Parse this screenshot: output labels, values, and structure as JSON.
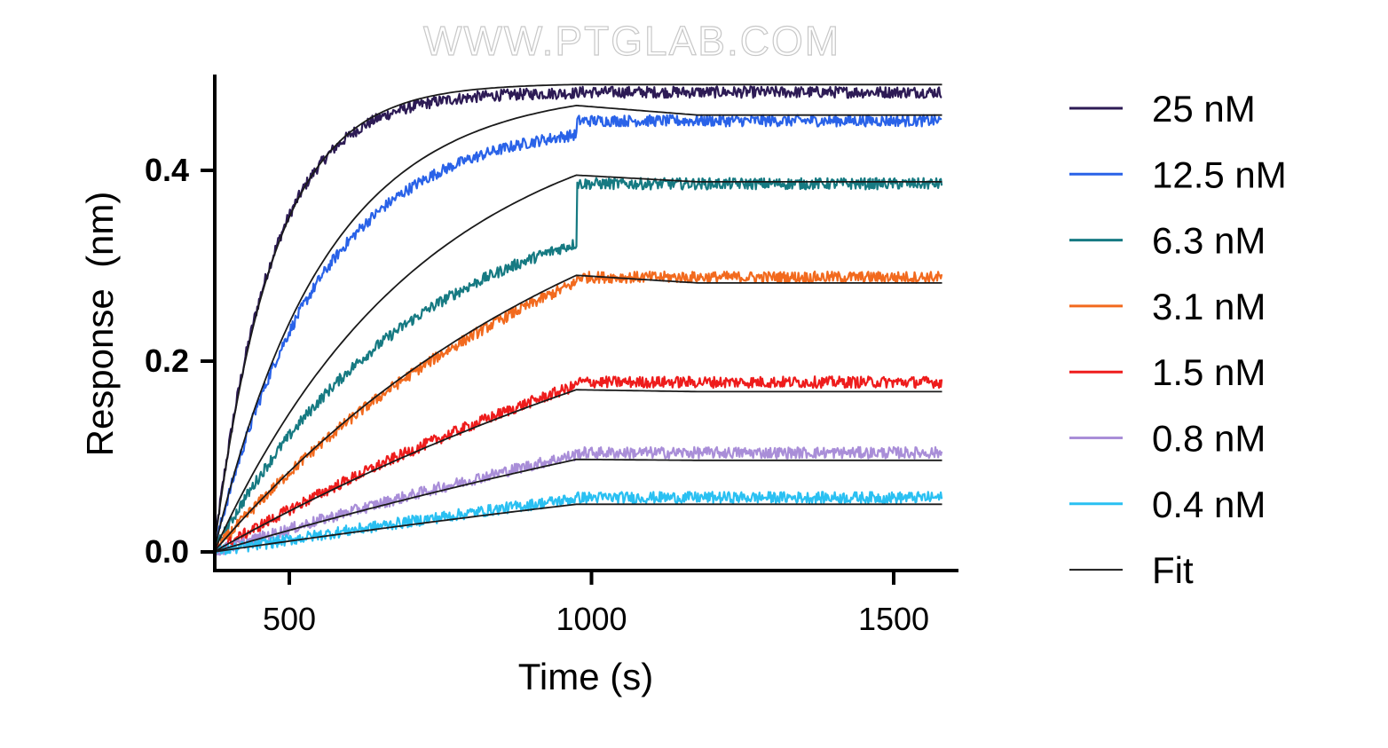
{
  "watermark": "WWW.PTGLAB.COM",
  "chart_data": {
    "type": "line",
    "xlabel": "Time (s)",
    "ylabel": "Response  (nm)",
    "xlim": [
      375,
      1590
    ],
    "ylim": [
      -0.015,
      0.5
    ],
    "x_ticks": [
      500,
      1000,
      1500
    ],
    "x_tick_labels": [
      "500",
      "1000",
      "1500"
    ],
    "y_ticks": [
      0.0,
      0.2,
      0.4
    ],
    "y_tick_labels": [
      "0.0",
      "0.2",
      "0.4"
    ],
    "grid": false,
    "legend_position": "right",
    "association_start": 375,
    "dissociation_start": 975,
    "end_time": 1580,
    "series": [
      {
        "name": "25 nM",
        "color": "#2d1b55",
        "plateau_observed": 0.482,
        "fit_plateau": 0.49,
        "fit_rise": 0.49,
        "fit_end": 0.49,
        "tau_association": 95
      },
      {
        "name": "12.5 nM",
        "color": "#2962e8",
        "plateau_observed": 0.452,
        "fit_plateau": 0.46,
        "fit_rise": 0.468,
        "fit_end": 0.458,
        "tau_association": 175
      },
      {
        "name": "6.3 nM",
        "color": "#167a82",
        "plateau_observed": 0.386,
        "fit_plateau": 0.39,
        "fit_rise": 0.395,
        "fit_end": 0.388,
        "tau_association": 330
      },
      {
        "name": "3.1 nM",
        "color": "#f26a1e",
        "plateau_observed": 0.288,
        "fit_plateau": 0.282,
        "fit_rise": 0.29,
        "fit_end": 0.282,
        "tau_association": 620
      },
      {
        "name": "1.5 nM",
        "color": "#ee1c1c",
        "plateau_observed": 0.178,
        "fit_plateau": 0.168,
        "fit_rise": 0.17,
        "fit_end": 0.168,
        "tau_association": 1150
      },
      {
        "name": "0.8 nM",
        "color": "#a98ed8",
        "plateau_observed": 0.104,
        "fit_plateau": 0.096,
        "fit_rise": 0.097,
        "fit_end": 0.096,
        "tau_association": 1900
      },
      {
        "name": "0.4 nM",
        "color": "#2ac0f2",
        "plateau_observed": 0.057,
        "fit_plateau": 0.05,
        "fit_rise": 0.05,
        "fit_end": 0.05,
        "tau_association": 2600
      }
    ],
    "fit": {
      "name": "Fit",
      "color": "#1a1a1a"
    }
  }
}
